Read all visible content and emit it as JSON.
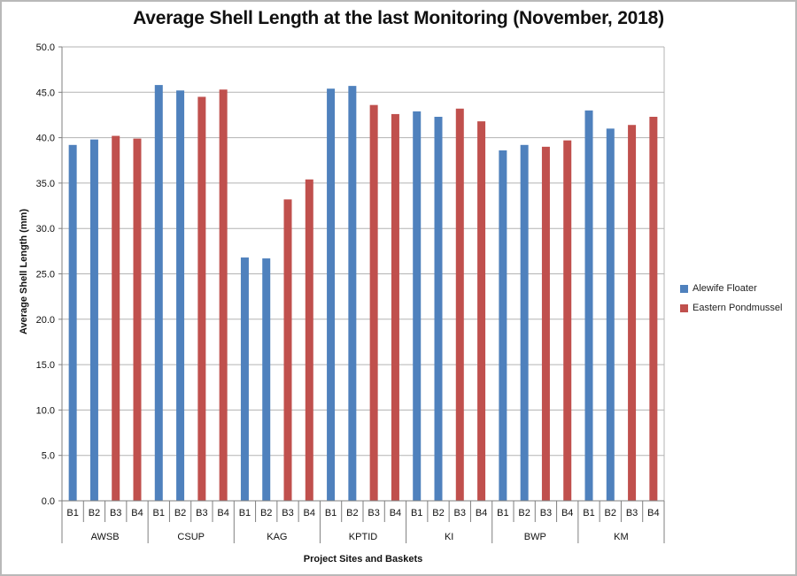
{
  "window": {
    "background": "#ffffff",
    "border_color": "#b9b9b9"
  },
  "colors": {
    "alewife_blue": "#4f81bd",
    "pondmussel_red": "#c0504d",
    "gridline": "#b3b3b3",
    "axis": "#7f7f7f",
    "text": "#111111"
  },
  "legend": {
    "position": "right",
    "items": [
      {
        "label": "Alewife Floater",
        "color": "#4f81bd"
      },
      {
        "label": "Eastern Pondmussel",
        "color": "#c0504d"
      }
    ]
  },
  "chart_data": {
    "type": "bar",
    "title": "Average Shell Length at the last Monitoring (November, 2018)",
    "xlabel": "Project Sites and Baskets",
    "ylabel": "Average Shell Length (mm)",
    "ylim": [
      0,
      50
    ],
    "ytick_step": 5,
    "ytick_labels": [
      "0.0",
      "5.0",
      "10.0",
      "15.0",
      "20.0",
      "25.0",
      "30.0",
      "35.0",
      "40.0",
      "45.0",
      "50.0"
    ],
    "grid": true,
    "legend_position": "right",
    "basket_labels": [
      "B1",
      "B2",
      "B3",
      "B4"
    ],
    "series": [
      {
        "name": "Alewife Floater",
        "color": "#4f81bd",
        "baskets": [
          "B1",
          "B2"
        ]
      },
      {
        "name": "Eastern Pondmussel",
        "color": "#c0504d",
        "baskets": [
          "B3",
          "B4"
        ]
      }
    ],
    "groups": [
      {
        "site": "AWSB",
        "values": [
          39.2,
          39.8,
          40.2,
          39.9
        ]
      },
      {
        "site": "CSUP",
        "values": [
          45.8,
          45.2,
          44.5,
          45.3
        ]
      },
      {
        "site": "KAG",
        "values": [
          26.8,
          26.7,
          33.2,
          35.4
        ]
      },
      {
        "site": "KPTID",
        "values": [
          45.4,
          45.7,
          43.6,
          42.6
        ]
      },
      {
        "site": "KI",
        "values": [
          42.9,
          42.3,
          43.2,
          41.8
        ]
      },
      {
        "site": "BWP",
        "values": [
          38.6,
          39.2,
          39.0,
          39.7
        ]
      },
      {
        "site": "KM",
        "values": [
          43.0,
          41.0,
          41.4,
          42.3
        ]
      }
    ]
  }
}
